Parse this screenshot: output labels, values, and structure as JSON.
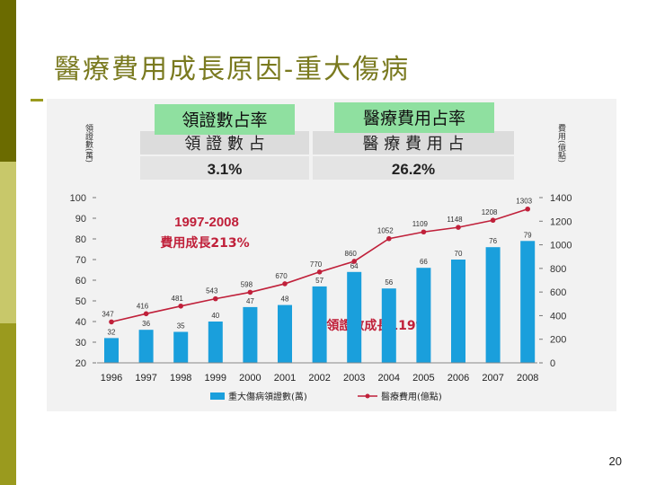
{
  "slide": {
    "title": "醫療費用成長原因-重大傷病",
    "page_number": "20"
  },
  "colors": {
    "bar": "#1a9fdc",
    "line": "#c0203a",
    "callout_bg": "#8fe0a0",
    "title": "#7a7a20"
  },
  "callouts": {
    "cert_share_label": "領證數占率",
    "cost_share_label": "醫療費用占率"
  },
  "share_table": {
    "headers": [
      "領 證 數 占",
      "醫 療 費 用 占"
    ],
    "values": [
      "3.1%",
      "26.2%"
    ]
  },
  "annotations": {
    "cost_growth_period": "1997-2008",
    "cost_growth": "費用成長213%",
    "cert_growth": "領證數成長119%"
  },
  "chart_data": {
    "type": "bar",
    "categories": [
      "1996",
      "1997",
      "1998",
      "1999",
      "2000",
      "2001",
      "2002",
      "2003",
      "2004",
      "2005",
      "2006",
      "2007",
      "2008"
    ],
    "series": [
      {
        "name": "重大傷病領證數(萬)",
        "type": "bar",
        "axis": "left",
        "values": [
          32,
          36,
          35,
          40,
          47,
          48,
          57,
          64,
          56,
          66,
          70,
          76,
          79
        ]
      },
      {
        "name": "醫療費用(億點)",
        "type": "line",
        "axis": "right",
        "values": [
          347,
          416,
          481,
          543,
          598,
          670,
          770,
          860,
          1052,
          1109,
          1148,
          1208,
          1303
        ]
      }
    ],
    "left_axis": {
      "label": "領證數(萬)",
      "ticks": [
        20,
        30,
        40,
        50,
        60,
        70,
        80,
        90,
        100
      ],
      "range": [
        20,
        100
      ]
    },
    "right_axis": {
      "label": "費用(億點)",
      "ticks": [
        0,
        200,
        400,
        600,
        800,
        1000,
        1200,
        1400
      ],
      "range": [
        0,
        1400
      ]
    }
  }
}
